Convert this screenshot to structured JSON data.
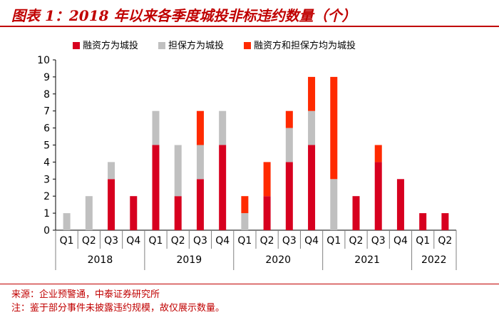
{
  "title": "图表 1：2018 年以来各季度城投非标违约数量（个）",
  "footer": {
    "source": "来源：企业预警通，中泰证券研究所",
    "note": "注：鉴于部分事件未披露违约规模，故仅展示数量。"
  },
  "chart_data": {
    "type": "bar",
    "stacked": true,
    "categories": [
      "Q1",
      "Q2",
      "Q3",
      "Q4",
      "Q1",
      "Q2",
      "Q3",
      "Q4",
      "Q1",
      "Q2",
      "Q3",
      "Q4",
      "Q1",
      "Q2",
      "Q3",
      "Q4",
      "Q1",
      "Q2"
    ],
    "groups": [
      {
        "label": "2018",
        "count": 4
      },
      {
        "label": "2019",
        "count": 4
      },
      {
        "label": "2020",
        "count": 4
      },
      {
        "label": "2021",
        "count": 4
      },
      {
        "label": "2022",
        "count": 2
      }
    ],
    "series": [
      {
        "name": "融资方为城投",
        "color": "#d7001f",
        "values": [
          0,
          0,
          3,
          2,
          5,
          2,
          3,
          5,
          0,
          2,
          4,
          5,
          0,
          2,
          4,
          3,
          1,
          1
        ]
      },
      {
        "name": "担保方为城投",
        "color": "#c0c0c0",
        "values": [
          1,
          2,
          1,
          0,
          2,
          3,
          2,
          2,
          1,
          0,
          2,
          2,
          3,
          0,
          0,
          0,
          0,
          0
        ]
      },
      {
        "name": "融资方和担保方均为城投",
        "color": "#ff2a00",
        "values": [
          0,
          0,
          0,
          0,
          0,
          0,
          2,
          0,
          1,
          2,
          1,
          2,
          6,
          0,
          1,
          0,
          0,
          0
        ]
      }
    ],
    "ylim": [
      0,
      10
    ],
    "yticks": [
      0,
      1,
      2,
      3,
      4,
      5,
      6,
      7,
      8,
      9,
      10
    ],
    "legend": "top",
    "grid": false
  }
}
